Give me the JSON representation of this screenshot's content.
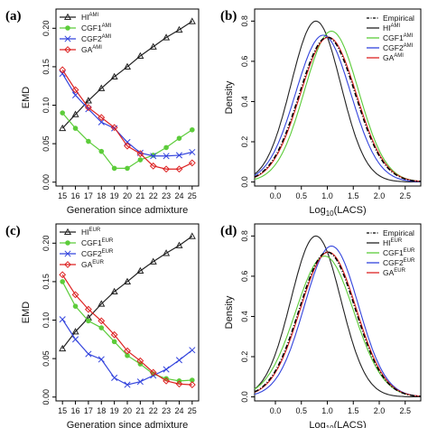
{
  "chart_data": [
    {
      "panel_label": "(a)",
      "type": "line",
      "xlabel": "Generation since admixture",
      "ylabel": "EMD",
      "x": [
        15,
        16,
        17,
        18,
        19,
        20,
        21,
        22,
        23,
        24,
        25
      ],
      "xlim": [
        14.5,
        25.5
      ],
      "ylim": [
        -0.005,
        0.225
      ],
      "yticks": [
        0.0,
        0.05,
        0.1,
        0.15,
        0.2
      ],
      "ytick_labels": [
        "0.00",
        "0.05",
        "0.10",
        "0.15",
        "0.20"
      ],
      "legend_position": "top-left",
      "series": [
        {
          "name": "HI",
          "sup": "AMI",
          "color": "#222222",
          "marker": "triangle",
          "values": [
            0.07,
            0.088,
            0.106,
            0.122,
            0.137,
            0.15,
            0.164,
            0.176,
            0.188,
            0.198,
            0.209
          ]
        },
        {
          "name": "CGF1",
          "sup": "AMI",
          "color": "#5ccc3a",
          "marker": "dot",
          "values": [
            0.09,
            0.07,
            0.053,
            0.04,
            0.018,
            0.018,
            0.029,
            0.035,
            0.045,
            0.057,
            0.068
          ]
        },
        {
          "name": "CGF2",
          "sup": "AMI",
          "color": "#3344dd",
          "marker": "x",
          "values": [
            0.141,
            0.113,
            0.095,
            0.078,
            0.07,
            0.052,
            0.038,
            0.034,
            0.034,
            0.035,
            0.039
          ]
        },
        {
          "name": "GA",
          "sup": "AMI",
          "color": "#dd2222",
          "marker": "diamond",
          "values": [
            0.146,
            0.12,
            0.097,
            0.084,
            0.071,
            0.047,
            0.037,
            0.021,
            0.017,
            0.017,
            0.025
          ]
        }
      ]
    },
    {
      "panel_label": "(b)",
      "type": "line",
      "xlabel": "Log10(LACS)",
      "xlabel_main": "Log",
      "xlabel_sub": "10",
      "xlabel_rest": "(LACS)",
      "ylabel": "Density",
      "xlim": [
        -0.4,
        2.8
      ],
      "ylim": [
        -0.02,
        0.86
      ],
      "xticks": [
        0.0,
        0.5,
        1.0,
        1.5,
        2.0,
        2.5
      ],
      "xtick_labels": [
        "0.0",
        "0.5",
        "1.0",
        "1.5",
        "2.0",
        "2.5"
      ],
      "yticks": [
        0.0,
        0.2,
        0.4,
        0.6,
        0.8
      ],
      "ytick_labels": [
        "0.0",
        "0.2",
        "0.4",
        "0.6",
        "0.8"
      ],
      "legend_position": "top-right",
      "series": [
        {
          "name": "Empirical",
          "sup": "",
          "color": "#000000",
          "dash": true,
          "peak_x": 1.0,
          "peak_y": 0.72,
          "sigma": 0.54
        },
        {
          "name": "HI",
          "sup": "AMI",
          "color": "#222222",
          "dash": false,
          "peak_x": 0.78,
          "peak_y": 0.8,
          "sigma": 0.48
        },
        {
          "name": "CGF1",
          "sup": "AMI",
          "color": "#5ccc3a",
          "dash": false,
          "peak_x": 1.08,
          "peak_y": 0.75,
          "sigma": 0.52
        },
        {
          "name": "CGF2",
          "sup": "AMI",
          "color": "#3344dd",
          "dash": false,
          "peak_x": 0.92,
          "peak_y": 0.73,
          "sigma": 0.53
        },
        {
          "name": "GA",
          "sup": "AMI",
          "color": "#dd2222",
          "dash": false,
          "peak_x": 1.02,
          "peak_y": 0.72,
          "sigma": 0.54
        }
      ]
    },
    {
      "panel_label": "(c)",
      "type": "line",
      "xlabel": "Generation since admixture",
      "ylabel": "EMD",
      "x": [
        15,
        16,
        17,
        18,
        19,
        20,
        21,
        22,
        23,
        24,
        25
      ],
      "xlim": [
        14.5,
        25.5
      ],
      "ylim": [
        -0.005,
        0.225
      ],
      "yticks": [
        0.0,
        0.05,
        0.1,
        0.15,
        0.2
      ],
      "ytick_labels": [
        "0.00",
        "0.05",
        "0.10",
        "0.15",
        "0.20"
      ],
      "legend_position": "top-left",
      "series": [
        {
          "name": "HI",
          "sup": "EUR",
          "color": "#222222",
          "marker": "triangle",
          "values": [
            0.063,
            0.085,
            0.103,
            0.121,
            0.137,
            0.15,
            0.164,
            0.176,
            0.187,
            0.197,
            0.209
          ]
        },
        {
          "name": "CGF1",
          "sup": "EUR",
          "color": "#5ccc3a",
          "marker": "dot",
          "values": [
            0.15,
            0.118,
            0.099,
            0.09,
            0.072,
            0.054,
            0.043,
            0.03,
            0.024,
            0.021,
            0.022
          ]
        },
        {
          "name": "CGF2",
          "sup": "EUR",
          "color": "#3344dd",
          "marker": "x",
          "values": [
            0.101,
            0.075,
            0.056,
            0.049,
            0.025,
            0.016,
            0.02,
            0.028,
            0.036,
            0.048,
            0.061
          ]
        },
        {
          "name": "GA",
          "sup": "EUR",
          "color": "#dd2222",
          "marker": "diamond",
          "values": [
            0.159,
            0.133,
            0.114,
            0.099,
            0.081,
            0.06,
            0.047,
            0.032,
            0.021,
            0.017,
            0.016
          ]
        }
      ]
    },
    {
      "panel_label": "(d)",
      "type": "line",
      "xlabel": "Log10(LACS)",
      "xlabel_main": "Log",
      "xlabel_sub": "10",
      "xlabel_rest": "(LACS)",
      "ylabel": "Density",
      "xlim": [
        -0.4,
        2.8
      ],
      "ylim": [
        -0.02,
        0.86
      ],
      "xticks": [
        0.0,
        0.5,
        1.0,
        1.5,
        2.0,
        2.5
      ],
      "xtick_labels": [
        "0.0",
        "0.5",
        "1.0",
        "1.5",
        "2.0",
        "2.5"
      ],
      "yticks": [
        0.0,
        0.2,
        0.4,
        0.6,
        0.8
      ],
      "ytick_labels": [
        "0.0",
        "0.2",
        "0.4",
        "0.6",
        "0.8"
      ],
      "legend_position": "top-right",
      "series": [
        {
          "name": "Empirical",
          "sup": "",
          "color": "#000000",
          "dash": true,
          "peak_x": 1.0,
          "peak_y": 0.72,
          "sigma": 0.54
        },
        {
          "name": "HI",
          "sup": "EUR",
          "color": "#222222",
          "dash": false,
          "peak_x": 0.78,
          "peak_y": 0.8,
          "sigma": 0.48
        },
        {
          "name": "CGF1",
          "sup": "EUR",
          "color": "#5ccc3a",
          "dash": false,
          "peak_x": 0.95,
          "peak_y": 0.7,
          "sigma": 0.56
        },
        {
          "name": "CGF2",
          "sup": "EUR",
          "color": "#3344dd",
          "dash": false,
          "peak_x": 1.08,
          "peak_y": 0.75,
          "sigma": 0.52
        },
        {
          "name": "GA",
          "sup": "EUR",
          "color": "#dd2222",
          "dash": false,
          "peak_x": 1.02,
          "peak_y": 0.72,
          "sigma": 0.54
        }
      ]
    }
  ]
}
